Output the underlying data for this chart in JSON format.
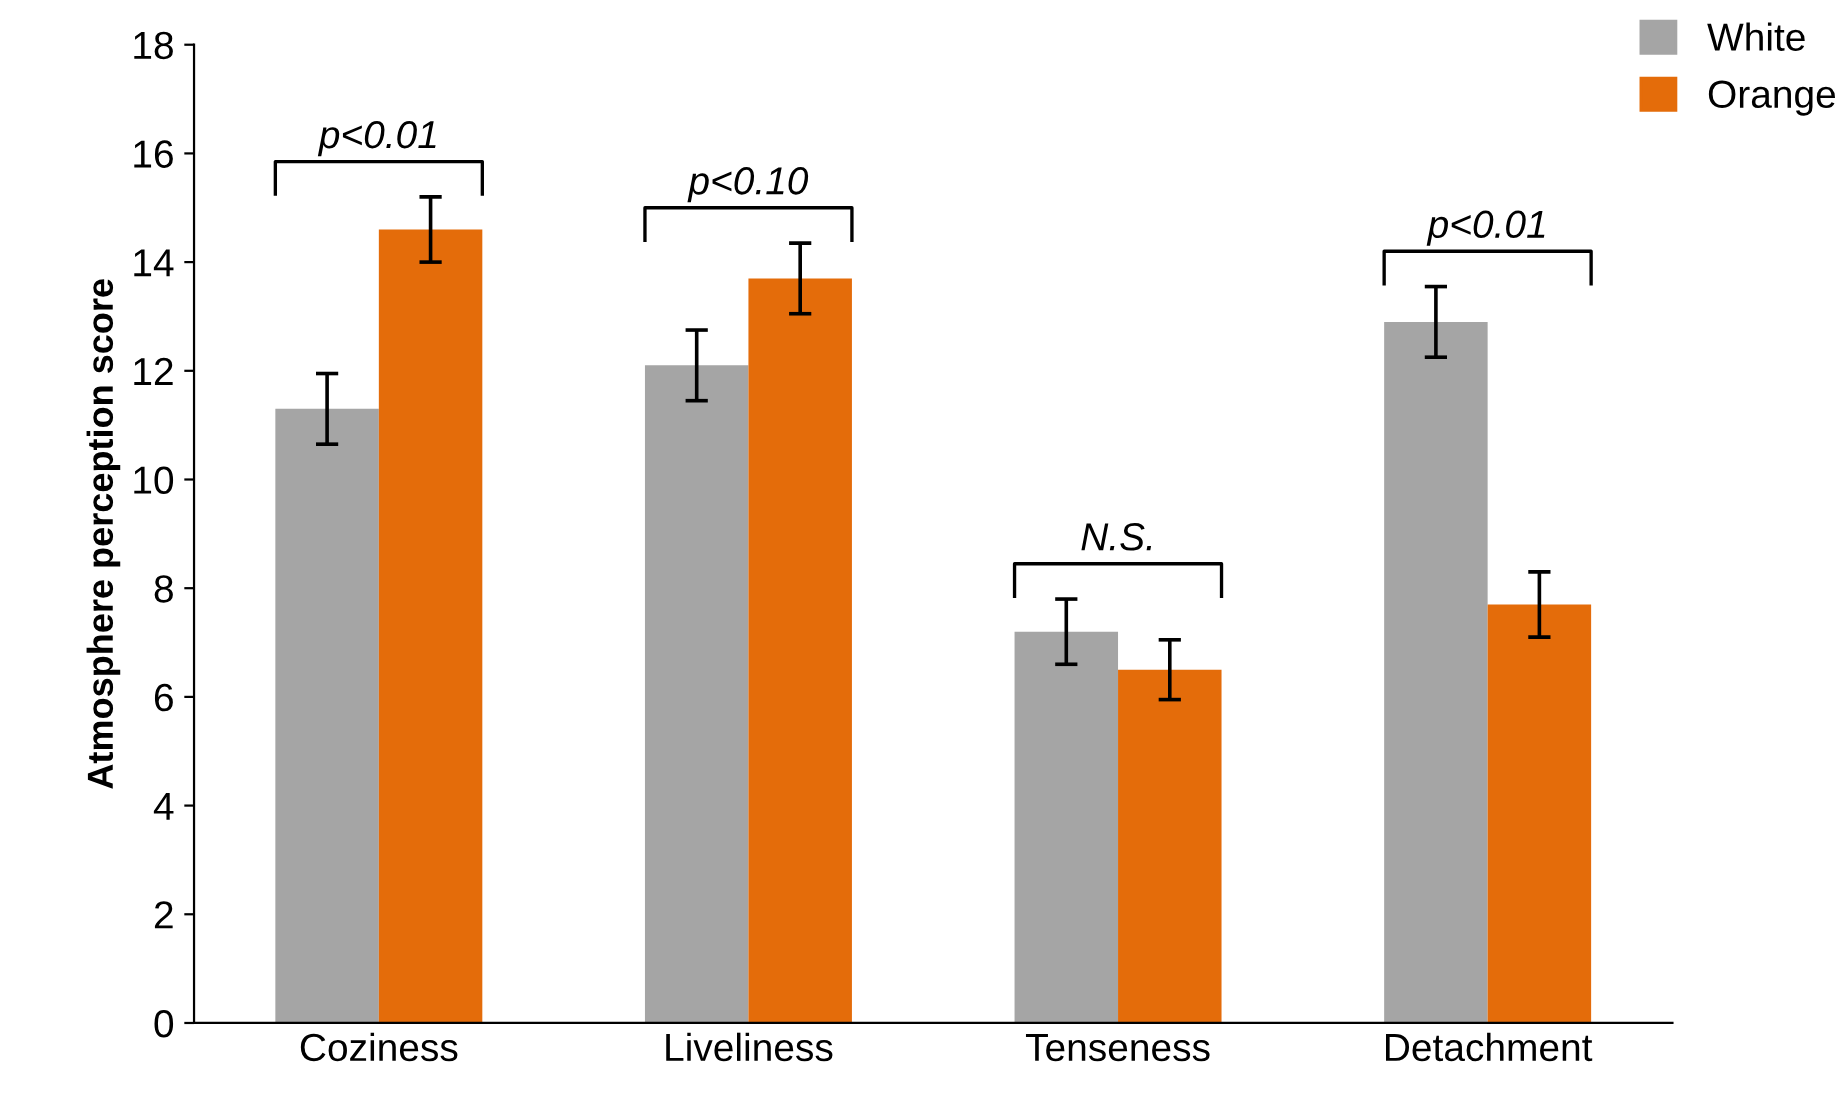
{
  "chart_data": {
    "type": "bar",
    "ylabel": "Atmosphere perception score",
    "categories": [
      "Coziness",
      "Liveliness",
      "Tenseness",
      "Detachment"
    ],
    "series": [
      {
        "name": "White",
        "color": "#a5a5a5",
        "values": [
          11.3,
          12.1,
          7.2,
          12.9
        ],
        "errors": [
          0.65,
          0.65,
          0.6,
          0.65
        ]
      },
      {
        "name": "Orange",
        "color": "#e46c0a",
        "values": [
          14.6,
          13.7,
          6.5,
          7.7
        ],
        "errors": [
          0.6,
          0.65,
          0.55,
          0.6
        ]
      }
    ],
    "ylim": [
      0,
      18
    ],
    "yticks": [
      0,
      2,
      4,
      6,
      8,
      10,
      12,
      14,
      16,
      18
    ],
    "grid": false,
    "legend": "top right",
    "annotations": [
      "p<0.01",
      "p<0.10",
      "N.S.",
      "p<0.01"
    ]
  }
}
